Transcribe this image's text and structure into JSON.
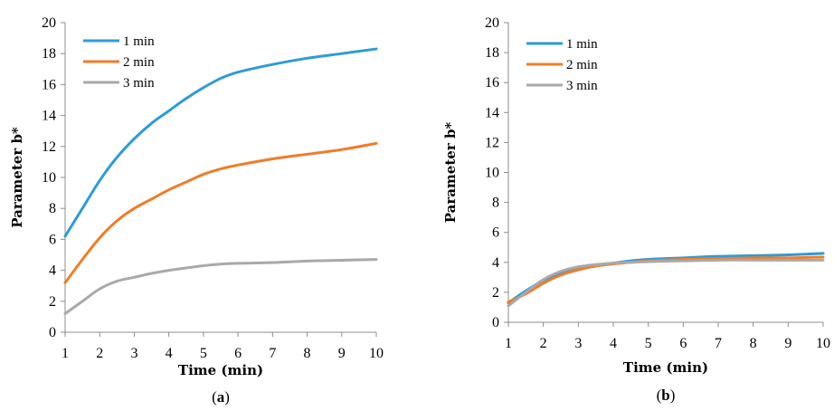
{
  "colors": {
    "series_1": "#2E9BD6",
    "series_2": "#F07C2A",
    "series_3": "#A9A9A9",
    "axis": "#8c8c8c"
  },
  "chart_data": [
    {
      "type": "line",
      "caption_letter": "a",
      "xlabel": "Time (min)",
      "ylabel": "Parameter b*",
      "xlim": [
        1,
        10
      ],
      "ylim": [
        0,
        20
      ],
      "xticks": [
        1,
        2,
        3,
        4,
        5,
        6,
        7,
        8,
        9,
        10
      ],
      "yticks": [
        0,
        2,
        4,
        6,
        8,
        10,
        12,
        14,
        16,
        18,
        20
      ],
      "grid": false,
      "legend_position": "top-left",
      "series": [
        {
          "name": "1 min",
          "x": [
            1,
            1.5,
            2,
            2.5,
            3,
            3.5,
            4,
            4.5,
            5,
            5.5,
            6,
            7,
            8,
            9,
            10
          ],
          "y": [
            6.2,
            8.0,
            9.8,
            11.3,
            12.5,
            13.5,
            14.3,
            15.1,
            15.8,
            16.4,
            16.8,
            17.3,
            17.7,
            18.0,
            18.3
          ]
        },
        {
          "name": "2 min",
          "x": [
            1,
            1.5,
            2,
            2.5,
            3,
            3.5,
            4,
            4.5,
            5,
            5.5,
            6,
            7,
            8,
            9,
            10
          ],
          "y": [
            3.2,
            4.7,
            6.1,
            7.2,
            8.0,
            8.6,
            9.2,
            9.7,
            10.2,
            10.55,
            10.8,
            11.2,
            11.5,
            11.8,
            12.2
          ]
        },
        {
          "name": "3 min",
          "x": [
            1,
            1.5,
            2,
            2.5,
            3,
            3.5,
            4,
            4.5,
            5,
            5.5,
            6,
            7,
            8,
            9,
            10
          ],
          "y": [
            1.2,
            2.0,
            2.8,
            3.3,
            3.55,
            3.8,
            4.0,
            4.15,
            4.3,
            4.4,
            4.45,
            4.5,
            4.6,
            4.65,
            4.7
          ]
        }
      ]
    },
    {
      "type": "line",
      "caption_letter": "b",
      "xlabel": "Time (min)",
      "ylabel": "Parameter b*",
      "xlim": [
        1,
        10
      ],
      "ylim": [
        0,
        20
      ],
      "xticks": [
        1,
        2,
        3,
        4,
        5,
        6,
        7,
        8,
        9,
        10
      ],
      "yticks": [
        0,
        2,
        4,
        6,
        8,
        10,
        12,
        14,
        16,
        18,
        20
      ],
      "grid": false,
      "legend_position": "top-left",
      "series": [
        {
          "name": "1 min",
          "x": [
            1,
            1.5,
            2,
            2.5,
            3,
            3.5,
            4,
            4.5,
            5,
            6,
            7,
            8,
            9,
            10
          ],
          "y": [
            1.3,
            2.1,
            2.8,
            3.3,
            3.65,
            3.8,
            3.95,
            4.1,
            4.2,
            4.3,
            4.4,
            4.45,
            4.5,
            4.6
          ]
        },
        {
          "name": "2 min",
          "x": [
            1,
            1.5,
            2,
            2.5,
            3,
            3.5,
            4,
            4.5,
            5,
            6,
            7,
            8,
            9,
            10
          ],
          "y": [
            1.35,
            1.9,
            2.6,
            3.15,
            3.5,
            3.75,
            3.9,
            4.0,
            4.1,
            4.2,
            4.25,
            4.3,
            4.3,
            4.35
          ]
        },
        {
          "name": "3 min",
          "x": [
            1,
            1.5,
            2,
            2.5,
            3,
            3.5,
            4,
            4.5,
            5,
            6,
            7,
            8,
            9,
            10
          ],
          "y": [
            1.1,
            2.0,
            2.85,
            3.4,
            3.7,
            3.85,
            3.95,
            4.0,
            4.05,
            4.1,
            4.15,
            4.15,
            4.15,
            4.15
          ]
        }
      ]
    }
  ]
}
